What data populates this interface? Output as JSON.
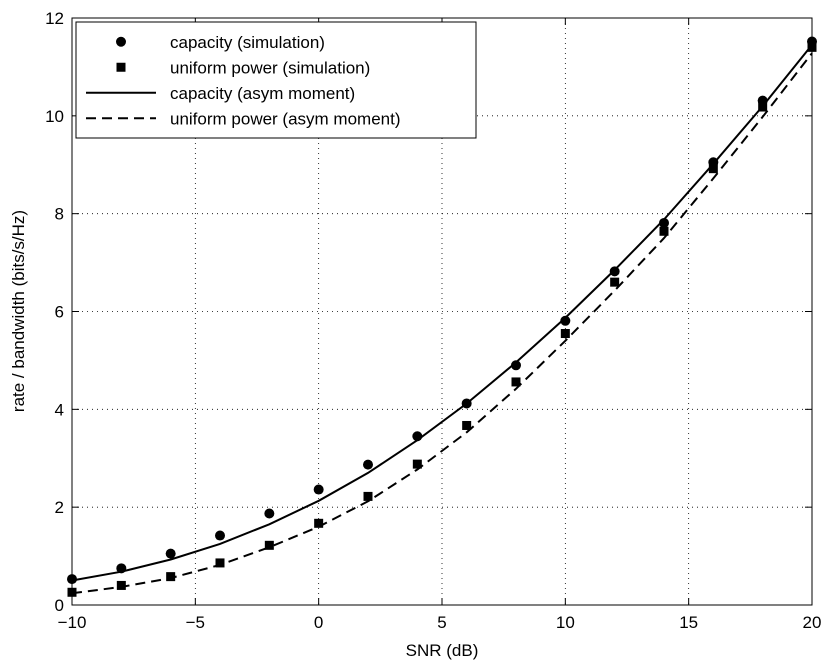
{
  "chart_data": {
    "type": "line",
    "title": "",
    "xlabel": "SNR (dB)",
    "ylabel": "rate / bandwidth (bits/s/Hz)",
    "xlim": [
      -10,
      20
    ],
    "ylim": [
      0,
      12
    ],
    "xticks": [
      -10,
      -5,
      0,
      5,
      10,
      15,
      20
    ],
    "xtick_labels": [
      "−10",
      "−5",
      "0",
      "5",
      "10",
      "15",
      "20"
    ],
    "yticks": [
      0,
      2,
      4,
      6,
      8,
      10,
      12
    ],
    "ytick_labels": [
      "0",
      "2",
      "4",
      "6",
      "8",
      "10",
      "12"
    ],
    "grid": true,
    "legend_position": "top-left",
    "series": [
      {
        "name": "capacity (simulation)",
        "style": "marker-circle",
        "x": [
          -10,
          -8,
          -6,
          -4,
          -2,
          0,
          2,
          4,
          6,
          8,
          10,
          12,
          14,
          16,
          18,
          20
        ],
        "y": [
          0.53,
          0.75,
          1.05,
          1.42,
          1.87,
          2.36,
          2.87,
          3.45,
          4.12,
          4.9,
          5.81,
          6.82,
          7.81,
          9.05,
          10.31,
          11.52
        ]
      },
      {
        "name": "uniform power (simulation)",
        "style": "marker-square",
        "x": [
          -10,
          -8,
          -6,
          -4,
          -2,
          0,
          2,
          4,
          6,
          8,
          10,
          12,
          14,
          16,
          18,
          20
        ],
        "y": [
          0.26,
          0.4,
          0.58,
          0.86,
          1.22,
          1.67,
          2.22,
          2.88,
          3.67,
          4.56,
          5.55,
          6.6,
          7.64,
          8.92,
          10.18,
          11.4
        ]
      },
      {
        "name": "capacity (asym moment)",
        "style": "line-solid",
        "x": [
          -10,
          -8,
          -6,
          -4,
          -2,
          0,
          2,
          4,
          6,
          8,
          10,
          12,
          14,
          16,
          18,
          20
        ],
        "y": [
          0.5,
          0.68,
          0.93,
          1.25,
          1.65,
          2.13,
          2.7,
          3.37,
          4.12,
          4.96,
          5.87,
          6.85,
          7.88,
          9.02,
          10.2,
          11.45
        ]
      },
      {
        "name": "uniform power (asym moment)",
        "style": "line-dashed",
        "x": [
          -10,
          -8,
          -6,
          -4,
          -2,
          0,
          2,
          4,
          6,
          8,
          10,
          12,
          14,
          16,
          18,
          20
        ],
        "y": [
          0.24,
          0.37,
          0.55,
          0.82,
          1.18,
          1.6,
          2.12,
          2.77,
          3.53,
          4.42,
          5.4,
          6.43,
          7.5,
          8.72,
          9.98,
          11.28
        ]
      }
    ]
  }
}
